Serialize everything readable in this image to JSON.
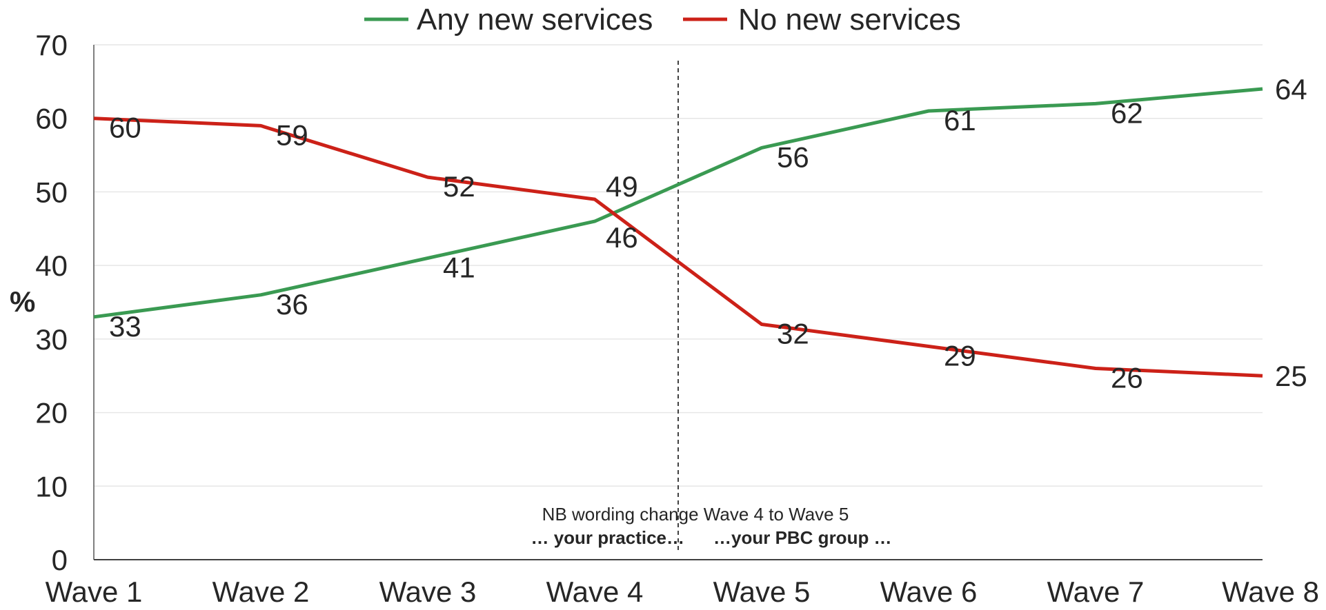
{
  "chart_data": {
    "type": "line",
    "title": "",
    "xlabel": "",
    "ylabel": "%",
    "categories": [
      "Wave 1",
      "Wave 2",
      "Wave 3",
      "Wave 4",
      "Wave 5",
      "Wave 6",
      "Wave 7",
      "Wave 8"
    ],
    "ylim": [
      0,
      70
    ],
    "yticks": [
      "0",
      "10",
      "20",
      "30",
      "40",
      "50",
      "60",
      "70"
    ],
    "grid": true,
    "legend_position": "top-center",
    "series": [
      {
        "name": "Any new services",
        "color": "#3a9a52",
        "values": [
          33,
          36,
          41,
          46,
          56,
          61,
          62,
          64
        ]
      },
      {
        "name": "No new services",
        "color": "#cc2118",
        "values": [
          60,
          59,
          52,
          49,
          32,
          29,
          26,
          25
        ]
      }
    ],
    "annotation": {
      "note": "NB wording change Wave 4 to Wave 5",
      "left_text": "… your practice…",
      "right_text": "…your PBC group …",
      "divider_between": [
        "Wave 4",
        "Wave 5"
      ]
    }
  }
}
